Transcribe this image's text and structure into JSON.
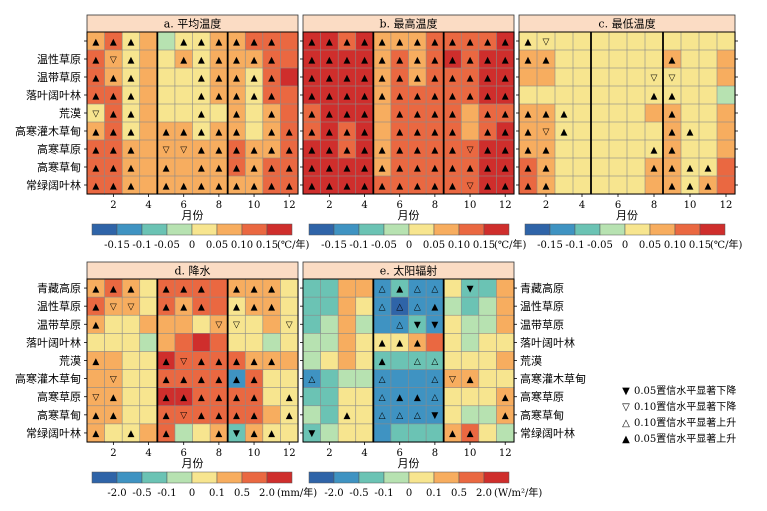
{
  "chart_data": [
    {
      "type": "heatmap",
      "title": "a. 平均温度",
      "xlabel": "月份",
      "x_ticks": [
        "2",
        "4",
        "6",
        "8",
        "10",
        "12"
      ],
      "y_categories": [
        "",
        "温性草原",
        "温带草原",
        "落叶阔叶林",
        "荒漠",
        "高寒灌木草甸",
        "高寒草原",
        "高寒草甸",
        "常绿阔叶林"
      ],
      "matrix": [
        [
          5,
          6,
          4,
          5,
          3,
          4,
          4,
          5,
          5,
          6,
          6,
          6
        ],
        [
          6,
          5,
          4,
          5,
          4,
          5,
          4,
          5,
          5,
          5,
          6,
          6
        ],
        [
          6,
          5,
          4,
          5,
          4,
          4,
          4,
          5,
          5,
          4,
          6,
          7
        ],
        [
          6,
          6,
          4,
          5,
          4,
          4,
          4,
          5,
          5,
          4,
          6,
          6
        ],
        [
          4,
          6,
          4,
          5,
          4,
          4,
          4,
          4,
          5,
          4,
          5,
          6
        ],
        [
          5,
          6,
          4,
          5,
          5,
          5,
          4,
          5,
          5,
          4,
          5,
          6
        ],
        [
          6,
          6,
          5,
          5,
          5,
          5,
          5,
          5,
          6,
          5,
          5,
          6
        ],
        [
          6,
          6,
          5,
          5,
          5,
          5,
          5,
          5,
          6,
          5,
          6,
          6
        ],
        [
          6,
          6,
          5,
          5,
          5,
          5,
          5,
          5,
          5,
          5,
          6,
          6
        ]
      ],
      "markers": [
        [
          4,
          4,
          4,
          0,
          0,
          4,
          4,
          4,
          4,
          4,
          4,
          0
        ],
        [
          4,
          2,
          4,
          0,
          0,
          4,
          4,
          4,
          4,
          4,
          4,
          0
        ],
        [
          4,
          4,
          4,
          0,
          0,
          0,
          4,
          4,
          4,
          4,
          4,
          0
        ],
        [
          4,
          4,
          4,
          0,
          0,
          0,
          4,
          4,
          4,
          4,
          4,
          0
        ],
        [
          2,
          4,
          4,
          0,
          0,
          0,
          4,
          0,
          4,
          0,
          4,
          0
        ],
        [
          4,
          4,
          4,
          0,
          4,
          4,
          4,
          4,
          4,
          0,
          4,
          4
        ],
        [
          4,
          4,
          4,
          0,
          2,
          2,
          4,
          4,
          4,
          4,
          4,
          4
        ],
        [
          4,
          4,
          4,
          0,
          4,
          0,
          4,
          4,
          4,
          4,
          4,
          4
        ],
        [
          4,
          4,
          4,
          0,
          4,
          4,
          4,
          4,
          4,
          4,
          4,
          4
        ]
      ],
      "colorbar": {
        "ticks": [
          "-0.15",
          "-0.1",
          "-0.05",
          "0",
          "0.05",
          "0.10",
          "0.15"
        ],
        "unit": "(℃/年)"
      }
    },
    {
      "type": "heatmap",
      "title": "b. 最高温度",
      "xlabel": "月份",
      "x_ticks": [
        "2",
        "4",
        "6",
        "8",
        "10",
        "12"
      ],
      "y_categories": [
        "",
        "温性草原",
        "温带草原",
        "落叶阔叶林",
        "荒漠",
        "高寒灌木草甸",
        "高寒草原",
        "高寒草甸",
        "常绿阔叶林"
      ],
      "matrix": [
        [
          7,
          7,
          6,
          7,
          5,
          5,
          5,
          6,
          6,
          6,
          6,
          7
        ],
        [
          7,
          7,
          7,
          7,
          5,
          6,
          5,
          6,
          7,
          6,
          7,
          7
        ],
        [
          7,
          7,
          7,
          7,
          5,
          6,
          5,
          6,
          6,
          6,
          7,
          7
        ],
        [
          7,
          7,
          7,
          7,
          5,
          6,
          6,
          6,
          6,
          6,
          7,
          7
        ],
        [
          6,
          7,
          7,
          7,
          5,
          6,
          6,
          6,
          6,
          5,
          6,
          6
        ],
        [
          6,
          7,
          6,
          7,
          5,
          6,
          6,
          6,
          6,
          5,
          6,
          7
        ],
        [
          7,
          7,
          6,
          7,
          5,
          6,
          6,
          6,
          6,
          6,
          7,
          7
        ],
        [
          7,
          7,
          7,
          7,
          5,
          6,
          6,
          6,
          6,
          6,
          7,
          7
        ],
        [
          7,
          7,
          7,
          7,
          6,
          6,
          6,
          6,
          6,
          6,
          7,
          7
        ]
      ],
      "markers": [
        [
          4,
          4,
          4,
          4,
          4,
          4,
          4,
          4,
          4,
          4,
          4,
          4
        ],
        [
          4,
          4,
          4,
          4,
          4,
          4,
          4,
          4,
          4,
          4,
          4,
          4
        ],
        [
          4,
          4,
          4,
          4,
          4,
          4,
          4,
          4,
          4,
          4,
          4,
          4
        ],
        [
          4,
          4,
          4,
          4,
          4,
          4,
          4,
          4,
          4,
          4,
          4,
          4
        ],
        [
          4,
          4,
          4,
          4,
          0,
          4,
          4,
          4,
          4,
          0,
          4,
          4
        ],
        [
          4,
          4,
          4,
          4,
          0,
          4,
          4,
          4,
          4,
          0,
          4,
          4
        ],
        [
          4,
          4,
          4,
          4,
          4,
          4,
          4,
          4,
          4,
          2,
          4,
          4
        ],
        [
          4,
          4,
          4,
          4,
          4,
          4,
          4,
          4,
          4,
          4,
          4,
          4
        ],
        [
          4,
          4,
          4,
          4,
          4,
          4,
          4,
          4,
          4,
          2,
          4,
          4
        ]
      ],
      "colorbar": {
        "ticks": [
          "-0.15",
          "-0.1",
          "-0.05",
          "0",
          "0.05",
          "0.10",
          "0.15"
        ],
        "unit": "(℃/年)"
      }
    },
    {
      "type": "heatmap",
      "title": "c. 最低温度",
      "xlabel": "月份",
      "x_ticks": [
        "2",
        "4",
        "6",
        "8",
        "10",
        "12"
      ],
      "y_categories": [
        "",
        "温性草原",
        "温带草原",
        "落叶阔叶林",
        "荒漠",
        "高寒灌木草甸",
        "高寒草原",
        "高寒草甸",
        "常绿阔叶林"
      ],
      "matrix": [
        [
          4,
          4,
          4,
          4,
          4,
          4,
          4,
          4,
          4,
          4,
          4,
          4
        ],
        [
          5,
          5,
          4,
          4,
          4,
          4,
          4,
          4,
          5,
          4,
          4,
          5
        ],
        [
          5,
          5,
          4,
          4,
          4,
          4,
          4,
          4,
          4,
          4,
          4,
          5
        ],
        [
          4,
          4,
          4,
          4,
          4,
          4,
          4,
          4,
          4,
          4,
          4,
          3
        ],
        [
          5,
          5,
          4,
          4,
          4,
          4,
          4,
          5,
          5,
          4,
          4,
          5
        ],
        [
          5,
          5,
          4,
          4,
          4,
          4,
          4,
          4,
          5,
          4,
          4,
          5
        ],
        [
          5,
          5,
          4,
          4,
          4,
          4,
          4,
          4,
          5,
          4,
          4,
          5
        ],
        [
          6,
          5,
          4,
          4,
          4,
          4,
          4,
          5,
          5,
          4,
          4,
          6
        ],
        [
          6,
          5,
          4,
          4,
          4,
          4,
          4,
          5,
          5,
          4,
          5,
          6
        ]
      ],
      "markers": [
        [
          4,
          2,
          0,
          0,
          0,
          0,
          0,
          0,
          0,
          0,
          0,
          0
        ],
        [
          4,
          4,
          0,
          0,
          0,
          0,
          0,
          0,
          4,
          0,
          0,
          0
        ],
        [
          0,
          0,
          0,
          0,
          0,
          0,
          0,
          2,
          2,
          0,
          0,
          0
        ],
        [
          0,
          0,
          0,
          0,
          0,
          0,
          0,
          4,
          4,
          0,
          0,
          0
        ],
        [
          4,
          4,
          4,
          0,
          0,
          0,
          0,
          0,
          4,
          0,
          0,
          0
        ],
        [
          4,
          2,
          4,
          0,
          0,
          0,
          0,
          0,
          4,
          4,
          0,
          0
        ],
        [
          4,
          4,
          0,
          0,
          0,
          0,
          0,
          4,
          4,
          0,
          0,
          0
        ],
        [
          4,
          4,
          0,
          0,
          0,
          0,
          0,
          4,
          4,
          4,
          4,
          0
        ],
        [
          4,
          4,
          0,
          0,
          0,
          0,
          0,
          0,
          4,
          4,
          4,
          0
        ]
      ],
      "colorbar": {
        "ticks": [
          "-0.15",
          "-0.1",
          "-0.05",
          "0",
          "0.05",
          "0.10",
          "0.15"
        ],
        "unit": "(℃/年)"
      }
    },
    {
      "type": "heatmap",
      "title": "d. 降水",
      "xlabel": "月份",
      "x_ticks": [
        "2",
        "4",
        "6",
        "8",
        "10",
        "12"
      ],
      "y_categories": [
        "青藏高原",
        "温性草原",
        "温带草原",
        "落叶阔叶林",
        "荒漠",
        "高寒灌木草甸",
        "高寒草原",
        "高寒草甸",
        "常绿阔叶林"
      ],
      "matrix": [
        [
          5,
          6,
          5,
          4,
          6,
          6,
          6,
          6,
          5,
          5,
          5,
          4
        ],
        [
          6,
          5,
          5,
          4,
          6,
          5,
          6,
          6,
          4,
          5,
          5,
          4
        ],
        [
          5,
          4,
          4,
          5,
          5,
          5,
          4,
          5,
          4,
          4,
          5,
          4
        ],
        [
          4,
          4,
          4,
          3,
          5,
          6,
          7,
          6,
          4,
          4,
          3,
          4
        ],
        [
          5,
          5,
          4,
          4,
          7,
          6,
          6,
          6,
          6,
          5,
          5,
          5
        ],
        [
          5,
          5,
          4,
          4,
          6,
          6,
          6,
          6,
          1,
          6,
          4,
          4
        ],
        [
          5,
          5,
          4,
          4,
          7,
          7,
          6,
          6,
          6,
          6,
          4,
          4
        ],
        [
          5,
          5,
          4,
          4,
          6,
          6,
          6,
          6,
          6,
          6,
          5,
          4
        ],
        [
          5,
          4,
          4,
          5,
          6,
          3,
          4,
          5,
          2,
          5,
          4,
          4
        ]
      ],
      "markers": [
        [
          4,
          4,
          4,
          0,
          4,
          4,
          4,
          0,
          4,
          4,
          4,
          0
        ],
        [
          4,
          2,
          2,
          0,
          4,
          4,
          4,
          0,
          4,
          4,
          4,
          0
        ],
        [
          4,
          0,
          0,
          0,
          0,
          0,
          0,
          2,
          2,
          0,
          0,
          2
        ],
        [
          0,
          0,
          0,
          0,
          0,
          0,
          0,
          0,
          0,
          0,
          0,
          0
        ],
        [
          4,
          0,
          0,
          0,
          4,
          2,
          4,
          4,
          4,
          4,
          4,
          0
        ],
        [
          0,
          2,
          0,
          0,
          4,
          4,
          4,
          4,
          4,
          4,
          0,
          0
        ],
        [
          2,
          4,
          0,
          0,
          4,
          4,
          4,
          4,
          4,
          4,
          0,
          4
        ],
        [
          4,
          4,
          0,
          0,
          4,
          2,
          4,
          4,
          4,
          4,
          0,
          4
        ],
        [
          4,
          0,
          4,
          0,
          4,
          0,
          0,
          4,
          1,
          4,
          4,
          0
        ]
      ],
      "colorbar": {
        "ticks": [
          "-2.0",
          "-0.5",
          "-0.1",
          "0",
          "0.1",
          "0.5",
          "2.0"
        ],
        "unit": "(mm/年)"
      }
    },
    {
      "type": "heatmap",
      "title": "e. 太阳辐射",
      "xlabel": "月份",
      "x_ticks": [
        "2",
        "4",
        "6",
        "8",
        "10",
        "12"
      ],
      "y_categories": [
        "青藏高原",
        "温性草原",
        "温带草原",
        "落叶阔叶林",
        "荒漠",
        "高寒灌木草甸",
        "高寒草原",
        "高寒草甸",
        "常绿阔叶林"
      ],
      "matrix": [
        [
          2,
          2,
          5,
          5,
          1,
          2,
          1,
          1,
          4,
          2,
          2,
          5
        ],
        [
          2,
          2,
          5,
          4,
          1,
          0,
          1,
          1,
          3,
          2,
          3,
          5
        ],
        [
          2,
          3,
          5,
          3,
          1,
          1,
          2,
          1,
          4,
          3,
          3,
          5
        ],
        [
          3,
          3,
          5,
          4,
          4,
          4,
          5,
          6,
          4,
          3,
          4,
          4
        ],
        [
          3,
          4,
          5,
          4,
          2,
          2,
          2,
          2,
          4,
          4,
          4,
          5
        ],
        [
          1,
          2,
          3,
          3,
          1,
          1,
          1,
          1,
          5,
          5,
          4,
          4
        ],
        [
          2,
          2,
          4,
          4,
          1,
          1,
          1,
          1,
          4,
          4,
          4,
          5
        ],
        [
          3,
          2,
          4,
          4,
          1,
          1,
          1,
          1,
          4,
          3,
          3,
          5
        ],
        [
          2,
          3,
          4,
          4,
          1,
          2,
          2,
          2,
          5,
          6,
          4,
          3
        ]
      ],
      "markers": [
        [
          0,
          0,
          0,
          0,
          3,
          4,
          3,
          3,
          0,
          1,
          0,
          0
        ],
        [
          0,
          0,
          0,
          0,
          3,
          3,
          3,
          4,
          0,
          0,
          0,
          0
        ],
        [
          0,
          0,
          0,
          0,
          0,
          3,
          1,
          1,
          0,
          0,
          0,
          0
        ],
        [
          0,
          0,
          0,
          0,
          4,
          4,
          4,
          0,
          0,
          0,
          0,
          0
        ],
        [
          0,
          0,
          0,
          0,
          4,
          0,
          3,
          3,
          0,
          0,
          0,
          0
        ],
        [
          3,
          0,
          0,
          0,
          3,
          0,
          0,
          3,
          2,
          4,
          0,
          0
        ],
        [
          0,
          0,
          0,
          0,
          3,
          4,
          4,
          3,
          0,
          0,
          0,
          4
        ],
        [
          0,
          0,
          4,
          0,
          3,
          3,
          3,
          1,
          0,
          0,
          0,
          4
        ],
        [
          1,
          0,
          0,
          0,
          0,
          0,
          0,
          0,
          4,
          4,
          0,
          0
        ]
      ],
      "colorbar": {
        "ticks": [
          "-2.0",
          "-0.5",
          "-0.1",
          "0",
          "0.1",
          "0.5",
          "2.0"
        ],
        "unit": "(W/m²/年)"
      }
    }
  ],
  "right_labels": [
    "青藏高原",
    "温性草原",
    "温带草原",
    "落叶阔叶林",
    "荒漠",
    "高寒灌木草甸",
    "高寒草原",
    "高寒草甸",
    "常绿阔叶林"
  ],
  "legend": [
    {
      "symbol": "▼",
      "label": "0.05置信水平显著下降"
    },
    {
      "symbol": "▽",
      "label": "0.10置信水平显著下降"
    },
    {
      "symbol": "△",
      "label": "0.10置信水平显著上升"
    },
    {
      "symbol": "▲",
      "label": "0.05置信水平显著上升"
    }
  ],
  "palette": [
    "#2f64a8",
    "#3f93c2",
    "#6bc3b4",
    "#b7e2b1",
    "#f7e58f",
    "#f7ad5f",
    "#ea6841",
    "#cf2e2c"
  ],
  "marker_symbols": [
    "",
    "▼",
    "▽",
    "△",
    "▲"
  ]
}
